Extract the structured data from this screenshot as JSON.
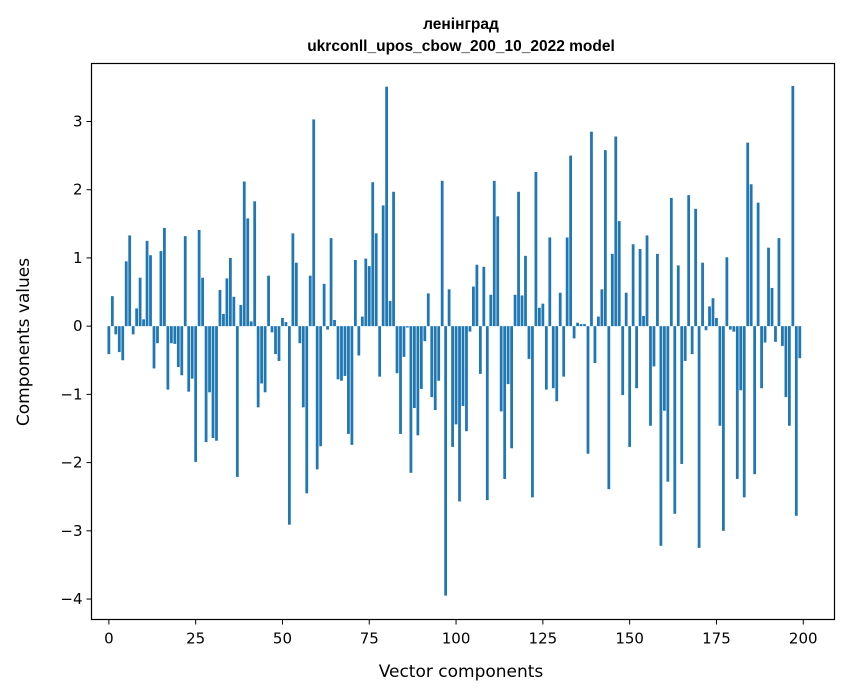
{
  "chart_data": {
    "type": "bar",
    "title": "ленінград",
    "subtitle": "ukrconll_upos_cbow_200_10_2022 model",
    "xlabel": "Vector components",
    "ylabel": "Components values",
    "xlim": [
      -5,
      209
    ],
    "ylim": [
      -4.3,
      3.85
    ],
    "xticks": [
      0,
      25,
      50,
      75,
      100,
      125,
      150,
      175,
      200
    ],
    "yticks": [
      -4,
      -3,
      -2,
      -1,
      0,
      1,
      2,
      3
    ],
    "grid": false,
    "legend": "none",
    "bar_color": "#1f77b4",
    "values": [
      -0.41,
      0.44,
      -0.12,
      -0.38,
      -0.5,
      0.95,
      1.33,
      -0.12,
      0.26,
      0.71,
      0.1,
      1.25,
      1.04,
      -0.62,
      -0.25,
      1.1,
      1.44,
      -0.93,
      -0.25,
      -0.26,
      -0.6,
      -0.72,
      1.32,
      -0.96,
      -0.77,
      -1.99,
      1.41,
      0.71,
      -1.7,
      -0.97,
      -1.64,
      -1.68,
      0.53,
      0.18,
      0.7,
      1.0,
      0.43,
      -2.21,
      0.31,
      2.12,
      1.58,
      0.07,
      1.83,
      -1.19,
      -0.84,
      -0.97,
      0.74,
      -0.09,
      -0.41,
      -0.51,
      0.12,
      0.06,
      -2.91,
      1.36,
      0.93,
      -0.25,
      -1.19,
      -2.45,
      0.74,
      3.03,
      -2.1,
      -1.76,
      0.62,
      -0.05,
      1.29,
      0.09,
      -0.78,
      -0.8,
      -0.73,
      -1.58,
      -1.74,
      0.97,
      -0.43,
      0.14,
      0.99,
      0.88,
      2.11,
      1.36,
      -0.74,
      1.77,
      3.51,
      0.37,
      1.97,
      -0.69,
      -1.58,
      -0.45,
      -0.02,
      -2.15,
      -1.2,
      -1.6,
      -0.92,
      -0.22,
      0.48,
      -1.04,
      -1.23,
      -0.8,
      2.13,
      -3.95,
      0.54,
      -1.77,
      -1.44,
      -2.57,
      -1.17,
      -1.54,
      -0.08,
      0.58,
      0.9,
      -0.7,
      0.87,
      -2.55,
      0.46,
      2.13,
      1.61,
      -1.25,
      -2.24,
      -0.85,
      -1.79,
      0.46,
      1.97,
      0.45,
      1.03,
      -0.48,
      -2.51,
      2.26,
      0.27,
      0.33,
      -0.93,
      1.3,
      -0.91,
      -1.1,
      0.49,
      -0.74,
      1.3,
      2.5,
      -0.18,
      0.05,
      0.03,
      0.03,
      -1.87,
      2.85,
      -0.54,
      0.14,
      0.54,
      2.58,
      -2.39,
      1.06,
      2.78,
      1.54,
      -1.01,
      0.49,
      -1.77,
      1.2,
      -0.91,
      1.13,
      0.15,
      1.33,
      -1.46,
      -0.59,
      1.06,
      -3.22,
      -1.24,
      -2.28,
      1.88,
      -2.75,
      0.89,
      -2.02,
      -0.51,
      1.92,
      -0.41,
      1.72,
      -3.25,
      0.93,
      -0.06,
      0.29,
      0.41,
      0.12,
      -1.46,
      -3.0,
      1.01,
      -0.05,
      -0.08,
      -2.24,
      -0.94,
      -2.51,
      2.69,
      2.08,
      -2.17,
      1.81,
      -0.91,
      -0.24,
      1.15,
      0.56,
      -0.23,
      1.29,
      -0.29,
      -1.04,
      -1.46,
      3.52,
      -2.78,
      -0.47
    ]
  }
}
